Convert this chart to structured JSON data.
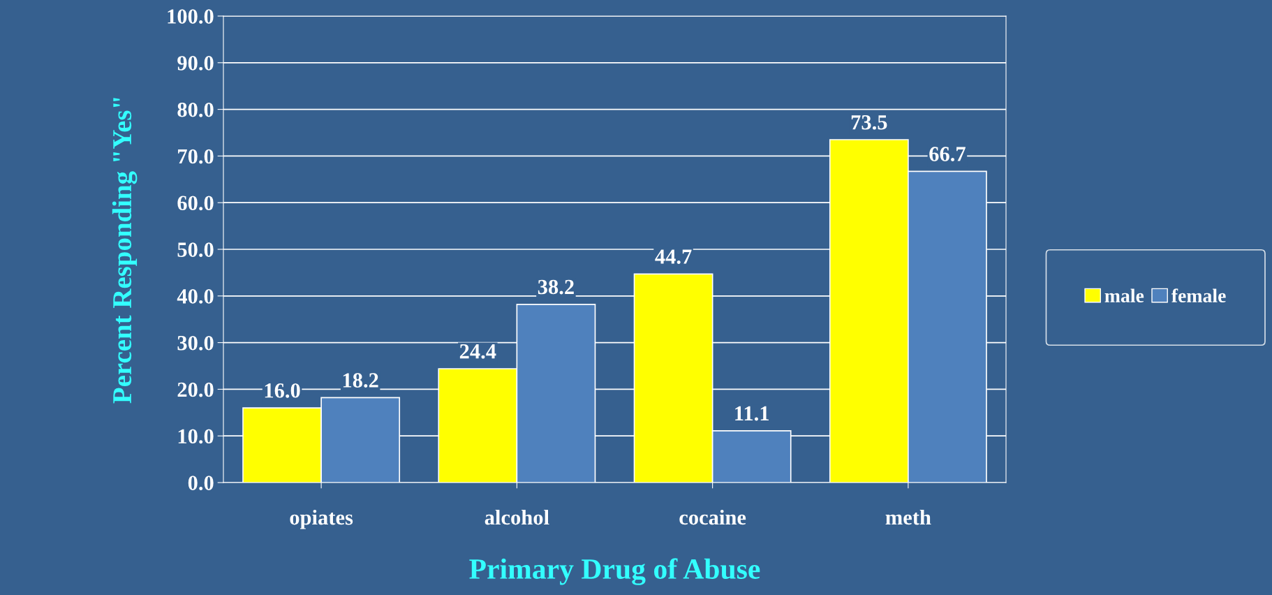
{
  "chart_data": {
    "type": "bar",
    "xlabel": "Primary Drug of Abuse",
    "ylabel": "Percent Responding \"Yes\"",
    "categories": [
      "opiates",
      "alcohol",
      "cocaine",
      "meth"
    ],
    "series": [
      {
        "name": "male",
        "color": "#ffff00",
        "values": [
          16.0,
          24.4,
          44.7,
          73.5
        ],
        "value_labels": [
          "16.0",
          "24.4",
          "44.7",
          "73.5"
        ]
      },
      {
        "name": "female",
        "color": "#4f81bd",
        "values": [
          18.2,
          38.2,
          11.1,
          66.7
        ],
        "value_labels": [
          "18.2",
          "38.2",
          "11.1",
          "66.7"
        ]
      }
    ],
    "ylim": [
      0,
      100
    ],
    "yticks": [
      {
        "value": 0,
        "label": "0.0"
      },
      {
        "value": 10,
        "label": "10.0"
      },
      {
        "value": 20,
        "label": "20.0"
      },
      {
        "value": 30,
        "label": "30.0"
      },
      {
        "value": 40,
        "label": "40.0"
      },
      {
        "value": 50,
        "label": "50.0"
      },
      {
        "value": 60,
        "label": "60.0"
      },
      {
        "value": 70,
        "label": "70.0"
      },
      {
        "value": 80,
        "label": "80.0"
      },
      {
        "value": 90,
        "label": "90.0"
      },
      {
        "value": 100,
        "label": "100.0"
      }
    ],
    "grid": "y",
    "legend": "right"
  }
}
